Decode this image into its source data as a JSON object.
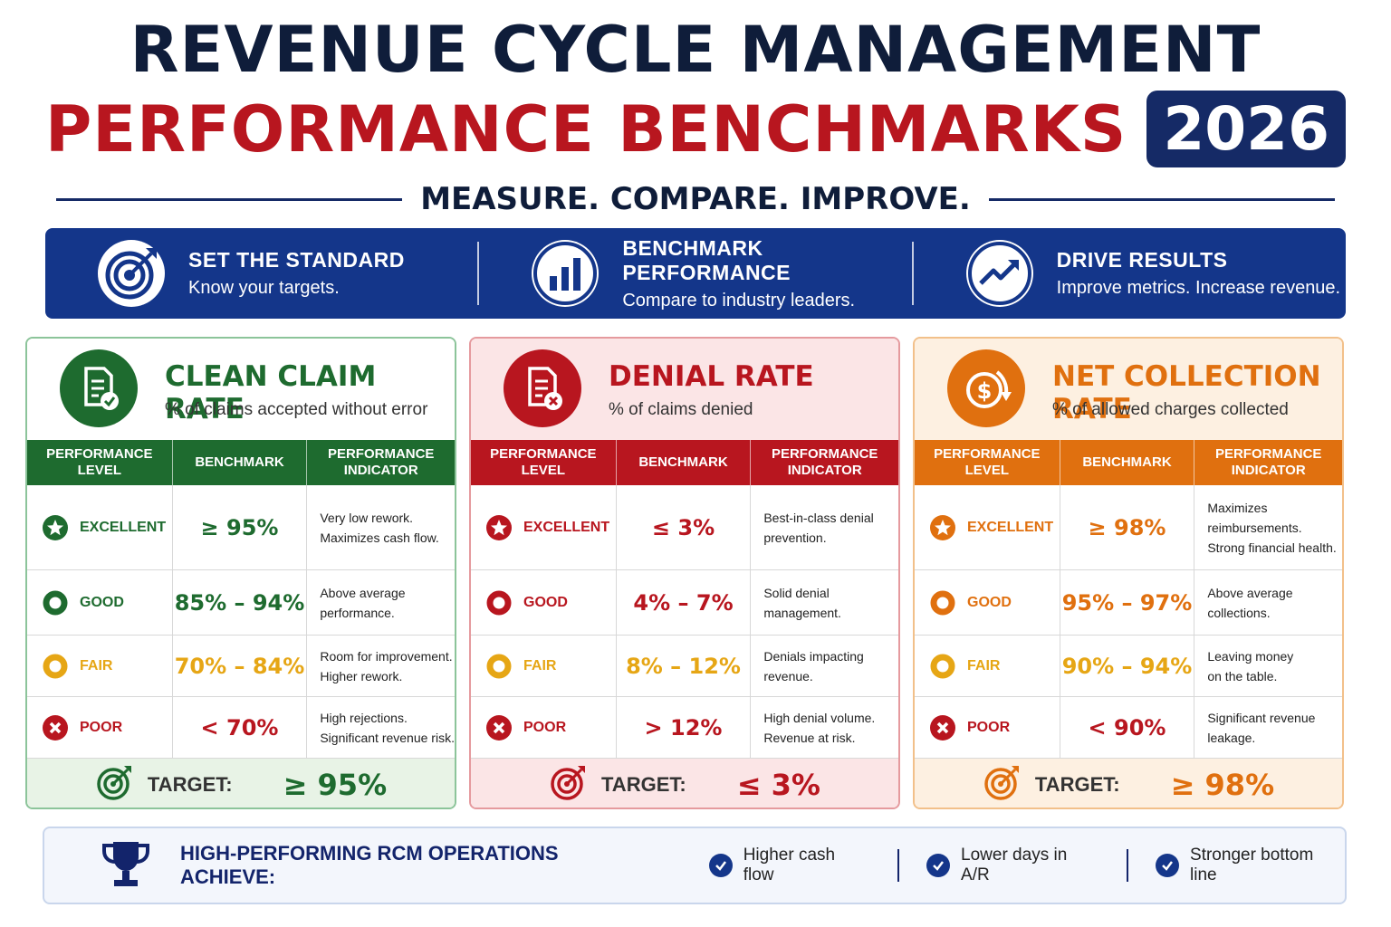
{
  "header": {
    "title_line1": "REVENUE CYCLE MANAGEMENT",
    "title_line2": "PERFORMANCE BENCHMARKS",
    "year": "2026",
    "tagline": "MEASURE. COMPARE. IMPROVE."
  },
  "banner": [
    {
      "icon": "target-icon",
      "title": "SET THE STANDARD",
      "subtitle": "Know your targets."
    },
    {
      "icon": "bar-chart-icon",
      "title": "BENCHMARK PERFORMANCE",
      "subtitle": "Compare to industry leaders."
    },
    {
      "icon": "trend-up-icon",
      "title": "DRIVE RESULTS",
      "subtitle": "Improve metrics. Increase revenue."
    }
  ],
  "cards": [
    {
      "title": "CLEAN CLAIM RATE",
      "subtitle": "% of claims accepted without error",
      "icon": "document-check-icon",
      "colors": {
        "main": "#1e6b2f",
        "border": "#8cc49a",
        "target_bg": "#e8f3e6"
      },
      "headers": [
        "PERFORMANCE LEVEL",
        "BENCHMARK",
        "PERFORMANCE INDICATOR"
      ],
      "rows": [
        {
          "level": "EXCELLENT",
          "benchmark": "≥ 95%",
          "ind1": "Very low rework.",
          "ind2": "Maximizes cash flow."
        },
        {
          "level": "GOOD",
          "benchmark": "85% – 94%",
          "ind1": "Above average",
          "ind2": "performance."
        },
        {
          "level": "FAIR",
          "benchmark": "70% – 84%",
          "ind1": "Room for improvement.",
          "ind2": "Higher rework."
        },
        {
          "level": "POOR",
          "benchmark": "< 70%",
          "ind1": "High rejections.",
          "ind2": "Significant revenue risk."
        }
      ],
      "target_label": "TARGET:",
      "target_value": "≥ 95%"
    },
    {
      "title": "DENIAL RATE",
      "subtitle": "% of claims denied",
      "icon": "document-x-icon",
      "colors": {
        "main": "#b8161f",
        "border": "#e59a9e",
        "target_bg": "#fbe5e6"
      },
      "headers": [
        "PERFORMANCE LEVEL",
        "BENCHMARK",
        "PERFORMANCE INDICATOR"
      ],
      "rows": [
        {
          "level": "EXCELLENT",
          "benchmark": "≤ 3%",
          "ind1": "Best-in-class denial",
          "ind2": "prevention."
        },
        {
          "level": "GOOD",
          "benchmark": "4% – 7%",
          "ind1": "Solid denial",
          "ind2": "management."
        },
        {
          "level": "FAIR",
          "benchmark": "8% – 12%",
          "ind1": "Denials impacting",
          "ind2": "revenue."
        },
        {
          "level": "POOR",
          "benchmark": "> 12%",
          "ind1": "High denial volume.",
          "ind2": "Revenue at risk."
        }
      ],
      "target_label": "TARGET:",
      "target_value": "≤ 3%"
    },
    {
      "title": "NET COLLECTION RATE",
      "subtitle": "% of allowed charges collected",
      "icon": "dollar-cycle-icon",
      "colors": {
        "main": "#e0700f",
        "border": "#f2c08a",
        "target_bg": "#fdf0e1"
      },
      "headers": [
        "PERFORMANCE LEVEL",
        "BENCHMARK",
        "PERFORMANCE INDICATOR"
      ],
      "rows": [
        {
          "level": "EXCELLENT",
          "benchmark": "≥ 98%",
          "ind1": "Maximizes reimbursements.",
          "ind2": "Strong financial health."
        },
        {
          "level": "GOOD",
          "benchmark": "95% – 97%",
          "ind1": "Above average",
          "ind2": "collections."
        },
        {
          "level": "FAIR",
          "benchmark": "90% – 94%",
          "ind1": "Leaving money",
          "ind2": "on the table."
        },
        {
          "level": "POOR",
          "benchmark": "< 90%",
          "ind1": "Significant revenue",
          "ind2": "leakage."
        }
      ],
      "target_label": "TARGET:",
      "target_value": "≥ 98%"
    }
  ],
  "level_colors": {
    "excellent": "#b8161f",
    "good": "#b8161f",
    "fair": "#e6a615",
    "poor": "#b8161f"
  },
  "footer": {
    "title": "HIGH-PERFORMING RCM OPERATIONS ACHIEVE:",
    "items": [
      "Higher cash flow",
      "Lower days in A/R",
      "Stronger bottom line"
    ]
  }
}
